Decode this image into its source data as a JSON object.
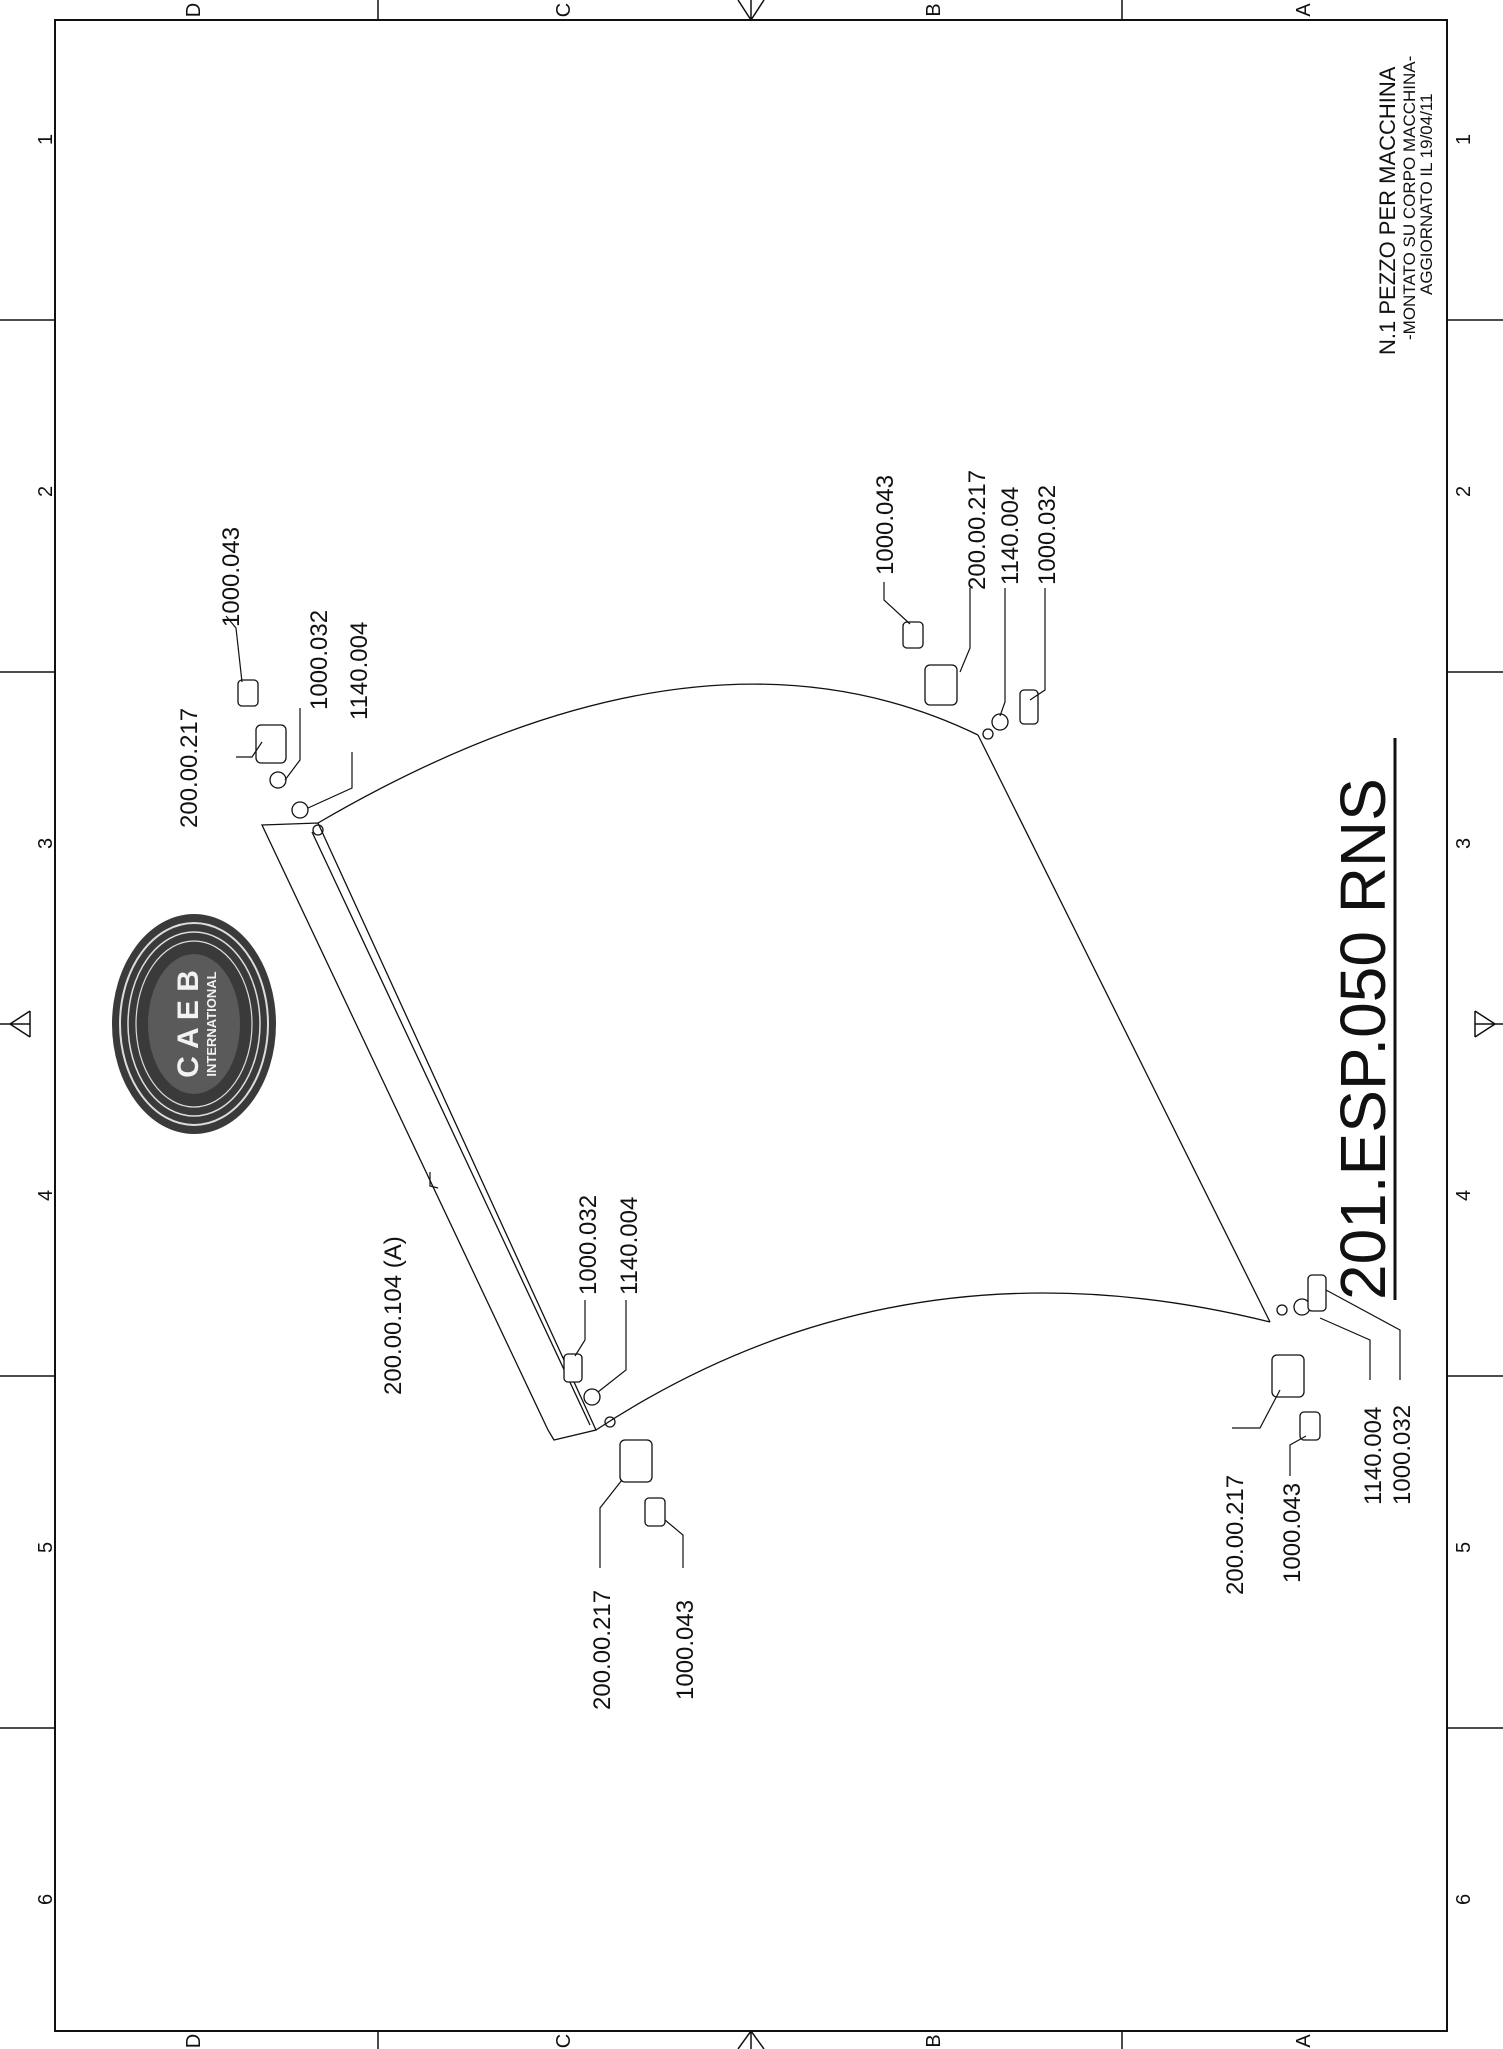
{
  "drawing": {
    "code": "201.ESP.050 RNS",
    "note": {
      "line1": "N.1 PEZZO PER MACCHINA",
      "line2": "-MONTATO SU CORPO MACCHINA-",
      "line3": "AGGIORNATO IL 19/04/11"
    }
  },
  "logo": {
    "letters": "C A E B",
    "sub": "INTERNATIONAL"
  },
  "zones": {
    "letters": [
      "D",
      "C",
      "B",
      "A"
    ],
    "numbers": [
      "1",
      "2",
      "3",
      "4",
      "5",
      "6"
    ]
  },
  "labels": {
    "tl_nut": "1000.043",
    "tl_bush": "200.00.217",
    "tl_screw": "1000.032",
    "tl_washer": "1140.004",
    "tr_nut": "1000.043",
    "tr_bush": "200.00.217",
    "tr_washer": "1140.004",
    "tr_screw": "1000.032",
    "panel": "200.00.104 (A)",
    "bl_screw": "1000.032",
    "bl_washer": "1140.004",
    "bl_bush": "200.00.217",
    "bl_nut": "1000.043",
    "br_bush": "200.00.217",
    "br_nut": "1000.043",
    "br_washer": "1140.004",
    "br_screw": "1000.032"
  },
  "colors": {
    "ink": "#111111",
    "logo_bg": "#3a3a3a",
    "paper": "#ffffff"
  }
}
